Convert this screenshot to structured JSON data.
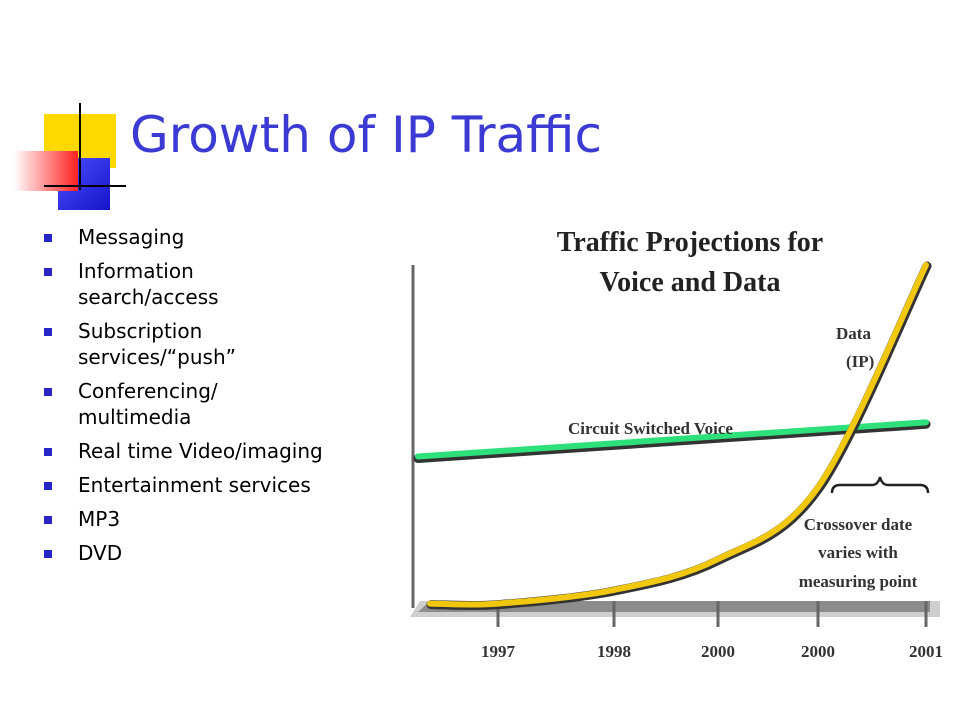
{
  "slide": {
    "title": "Growth of IP Traffic"
  },
  "bullets": [
    {
      "text": "Messaging"
    },
    {
      "text": "Information search/access"
    },
    {
      "text": "Subscription services/“push”"
    },
    {
      "text": "Conferencing/ multimedia"
    },
    {
      "text": "Real time Video/imaging"
    },
    {
      "text": "Entertainment services"
    },
    {
      "text": "MP3"
    },
    {
      "text": "DVD"
    }
  ],
  "colors": {
    "title": "#3b3bd4",
    "bullet_marker": "#2626c8",
    "voice_line": "#2ee07a",
    "data_curve": "#f2c80f",
    "axis_bar": "#8c8c8c"
  },
  "chart_data": {
    "type": "line",
    "title": "Traffic Projections for Voice and Data",
    "title_lines": [
      "Traffic Projections for",
      "Voice and Data"
    ],
    "categories": [
      "1997",
      "1998",
      "2000",
      "2000",
      "2001"
    ],
    "xlabel": "",
    "ylabel": "",
    "grid": false,
    "legend": "none",
    "series": [
      {
        "name": "Circuit Switched Voice",
        "values": [
          44,
          47,
          49,
          51,
          54
        ]
      },
      {
        "name": "Data (IP)",
        "values": [
          1,
          5,
          14,
          35,
          100
        ]
      }
    ],
    "ylim": [
      0,
      100
    ],
    "labels": {
      "voice": "Circuit Switched Voice",
      "data_line1": "Data",
      "data_line2": "(IP)"
    },
    "annotation": {
      "lines": [
        "Crossover date",
        "varies with",
        "measuring point"
      ]
    }
  }
}
